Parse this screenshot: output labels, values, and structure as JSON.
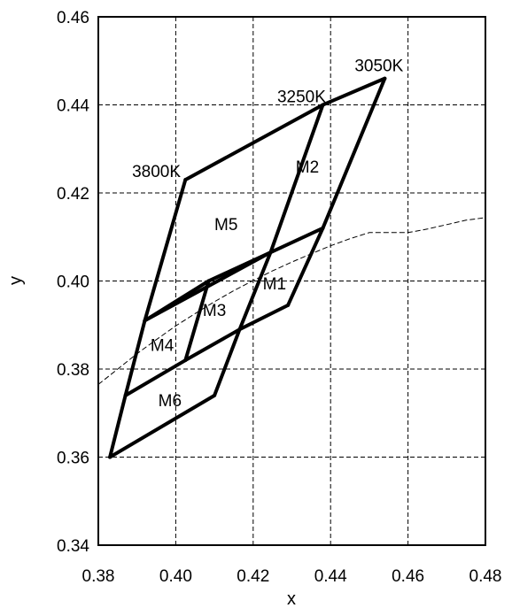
{
  "chart_data": {
    "type": "line",
    "title": "",
    "xlabel": "x",
    "ylabel": "y",
    "xlim": [
      0.38,
      0.48
    ],
    "ylim": [
      0.34,
      0.46
    ],
    "xticks": [
      "0.38",
      "0.40",
      "0.42",
      "0.44",
      "0.46",
      "0.48"
    ],
    "yticks": [
      "0.34",
      "0.36",
      "0.38",
      "0.40",
      "0.42",
      "0.44",
      "0.46"
    ],
    "grid": true,
    "legend": "none",
    "outline_segments": [
      [
        [
          0.4025,
          0.423
        ],
        [
          0.438,
          0.44
        ]
      ],
      [
        [
          0.438,
          0.44
        ],
        [
          0.454,
          0.446
        ]
      ],
      [
        [
          0.4025,
          0.423
        ],
        [
          0.392,
          0.391
        ]
      ],
      [
        [
          0.392,
          0.391
        ],
        [
          0.387,
          0.374
        ]
      ],
      [
        [
          0.387,
          0.374
        ],
        [
          0.383,
          0.36
        ]
      ],
      [
        [
          0.454,
          0.446
        ],
        [
          0.438,
          0.412
        ]
      ],
      [
        [
          0.438,
          0.412
        ],
        [
          0.429,
          0.3945
        ]
      ],
      [
        [
          0.429,
          0.3945
        ],
        [
          0.4165,
          0.389
        ]
      ],
      [
        [
          0.4165,
          0.389
        ],
        [
          0.41,
          0.374
        ]
      ],
      [
        [
          0.41,
          0.374
        ],
        [
          0.383,
          0.36
        ]
      ],
      [
        [
          0.438,
          0.44
        ],
        [
          0.4245,
          0.4065
        ]
      ],
      [
        [
          0.4245,
          0.4065
        ],
        [
          0.4165,
          0.389
        ]
      ],
      [
        [
          0.392,
          0.391
        ],
        [
          0.4085,
          0.4
        ]
      ],
      [
        [
          0.4085,
          0.4
        ],
        [
          0.4245,
          0.4065
        ]
      ],
      [
        [
          0.4245,
          0.4065
        ],
        [
          0.438,
          0.412
        ]
      ],
      [
        [
          0.392,
          0.391
        ],
        [
          0.4245,
          0.4065
        ]
      ],
      [
        [
          0.4085,
          0.4
        ],
        [
          0.4025,
          0.382
        ]
      ],
      [
        [
          0.387,
          0.374
        ],
        [
          0.4025,
          0.382
        ]
      ],
      [
        [
          0.4025,
          0.382
        ],
        [
          0.4165,
          0.389
        ]
      ]
    ],
    "planckian_locus": [
      [
        0.38,
        0.3765
      ],
      [
        0.385,
        0.38
      ],
      [
        0.39,
        0.3835
      ],
      [
        0.395,
        0.3867
      ],
      [
        0.4,
        0.3898
      ],
      [
        0.405,
        0.3926
      ],
      [
        0.41,
        0.3953
      ],
      [
        0.415,
        0.3978
      ],
      [
        0.42,
        0.4001
      ],
      [
        0.425,
        0.4023
      ],
      [
        0.43,
        0.4043
      ],
      [
        0.435,
        0.4062
      ],
      [
        0.44,
        0.408
      ],
      [
        0.445,
        0.4096
      ],
      [
        0.45,
        0.411
      ],
      [
        0.455,
        0.411
      ],
      [
        0.46,
        0.411
      ],
      [
        0.465,
        0.4118
      ],
      [
        0.47,
        0.4128
      ],
      [
        0.475,
        0.4138
      ],
      [
        0.48,
        0.4144
      ]
    ],
    "region_labels": [
      {
        "text": "M1",
        "x": 0.4255,
        "y": 0.3995
      },
      {
        "text": "M2",
        "x": 0.434,
        "y": 0.426
      },
      {
        "text": "M3",
        "x": 0.41,
        "y": 0.3935
      },
      {
        "text": "M4",
        "x": 0.3965,
        "y": 0.3855
      },
      {
        "text": "M5",
        "x": 0.413,
        "y": 0.413
      },
      {
        "text": "M6",
        "x": 0.3985,
        "y": 0.373
      }
    ],
    "cct_labels": [
      {
        "text": "3050K",
        "x": 0.4525,
        "y": 0.449
      },
      {
        "text": "3250K",
        "x": 0.4325,
        "y": 0.442
      },
      {
        "text": "3800K",
        "x": 0.395,
        "y": 0.425
      }
    ]
  }
}
